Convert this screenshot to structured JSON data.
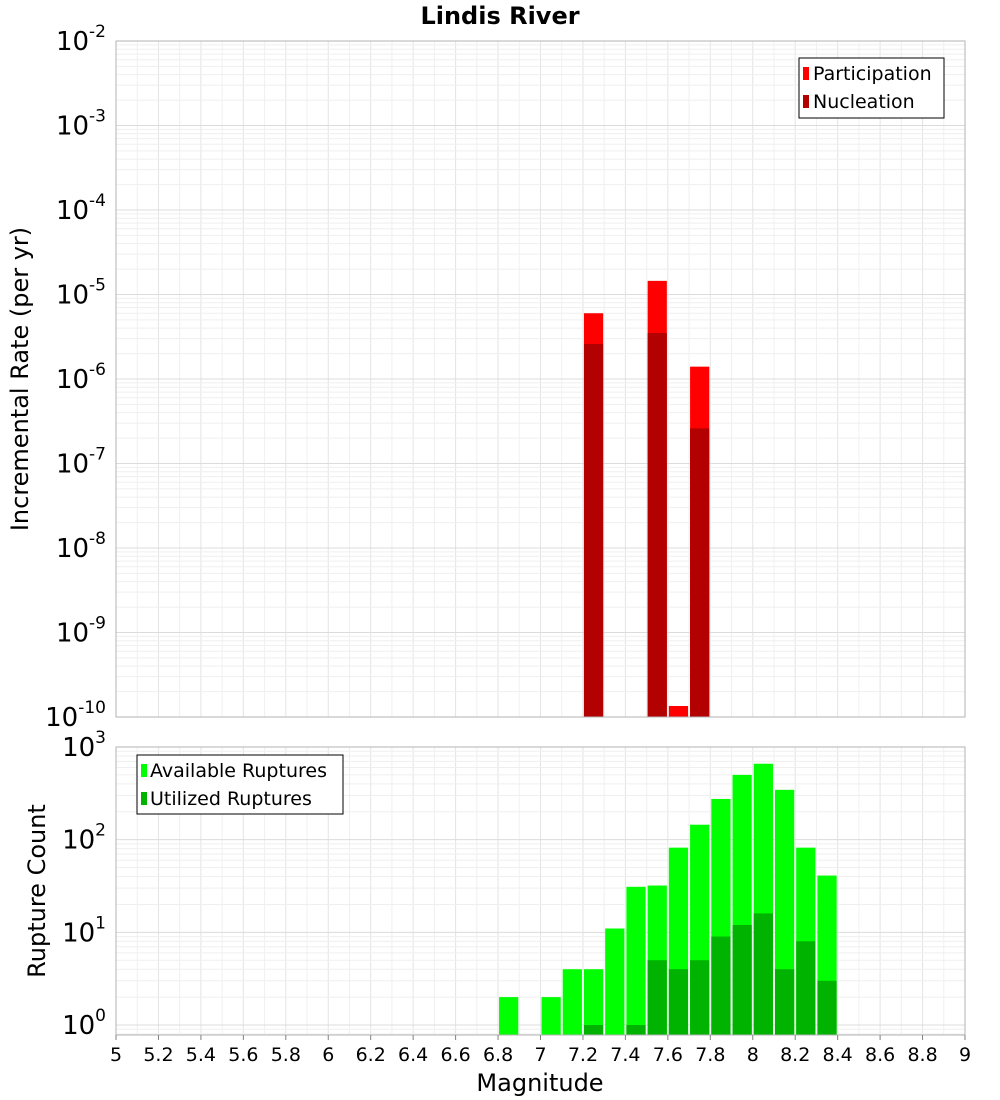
{
  "chart_data": [
    {
      "type": "bar",
      "title": "Lindis River",
      "xlabel": "",
      "ylabel": "Incremental Rate (per yr)",
      "xlim": [
        5,
        9
      ],
      "ylim": [
        1e-10,
        0.01
      ],
      "yscale": "log",
      "grid": true,
      "legend_position": "top-right",
      "y_ticks": [
        {
          "base": "10",
          "exp": "-10",
          "value": 1e-10
        },
        {
          "base": "10",
          "exp": "-9",
          "value": 1e-09
        },
        {
          "base": "10",
          "exp": "-8",
          "value": 1e-08
        },
        {
          "base": "10",
          "exp": "-7",
          "value": 1e-07
        },
        {
          "base": "10",
          "exp": "-6",
          "value": 1e-06
        },
        {
          "base": "10",
          "exp": "-5",
          "value": 1e-05
        },
        {
          "base": "10",
          "exp": "-4",
          "value": 0.0001
        },
        {
          "base": "10",
          "exp": "-3",
          "value": 0.001
        },
        {
          "base": "10",
          "exp": "-2",
          "value": 0.01
        }
      ],
      "series": [
        {
          "name": "Participation",
          "color": "#ff0000",
          "x": [
            7.25,
            7.55,
            7.65,
            7.75
          ],
          "values": [
            6e-06,
            1.45e-05,
            1.35e-10,
            1.4e-06
          ]
        },
        {
          "name": "Nucleation",
          "color": "#b30000",
          "x": [
            7.25,
            7.55,
            7.75
          ],
          "values": [
            2.6e-06,
            3.5e-06,
            2.6e-07
          ]
        }
      ]
    },
    {
      "type": "bar",
      "title": "",
      "xlabel": "Magnitude",
      "ylabel": "Rupture Count",
      "xlim": [
        5,
        9
      ],
      "ylim": [
        0.78,
        1000
      ],
      "yscale": "log",
      "grid": true,
      "legend_position": "top-left",
      "x_ticks": [
        "5",
        "5.2",
        "5.4",
        "5.6",
        "5.8",
        "6",
        "6.2",
        "6.4",
        "6.6",
        "6.8",
        "7",
        "7.2",
        "7.4",
        "7.6",
        "7.8",
        "8",
        "8.2",
        "8.4",
        "8.6",
        "8.8",
        "9"
      ],
      "y_ticks": [
        {
          "base": "10",
          "exp": "0",
          "value": 1
        },
        {
          "base": "10",
          "exp": "1",
          "value": 10
        },
        {
          "base": "10",
          "exp": "2",
          "value": 100
        },
        {
          "base": "10",
          "exp": "3",
          "value": 1000
        }
      ],
      "series": [
        {
          "name": "Available Ruptures",
          "color": "#00ff00",
          "x": [
            6.85,
            7.05,
            7.15,
            7.25,
            7.35,
            7.45,
            7.55,
            7.65,
            7.75,
            7.85,
            7.95,
            8.05,
            8.15,
            8.25,
            8.35
          ],
          "values": [
            2,
            2,
            4,
            4,
            11,
            31,
            32,
            82,
            145,
            275,
            500,
            660,
            345,
            82,
            41
          ]
        },
        {
          "name": "Utilized Ruptures",
          "color": "#00b300",
          "x": [
            7.25,
            7.45,
            7.55,
            7.65,
            7.75,
            7.85,
            7.95,
            8.05,
            8.15,
            8.25,
            8.35
          ],
          "values": [
            1,
            1,
            5,
            4,
            5,
            9,
            12,
            16,
            4,
            8,
            3
          ]
        }
      ]
    }
  ]
}
